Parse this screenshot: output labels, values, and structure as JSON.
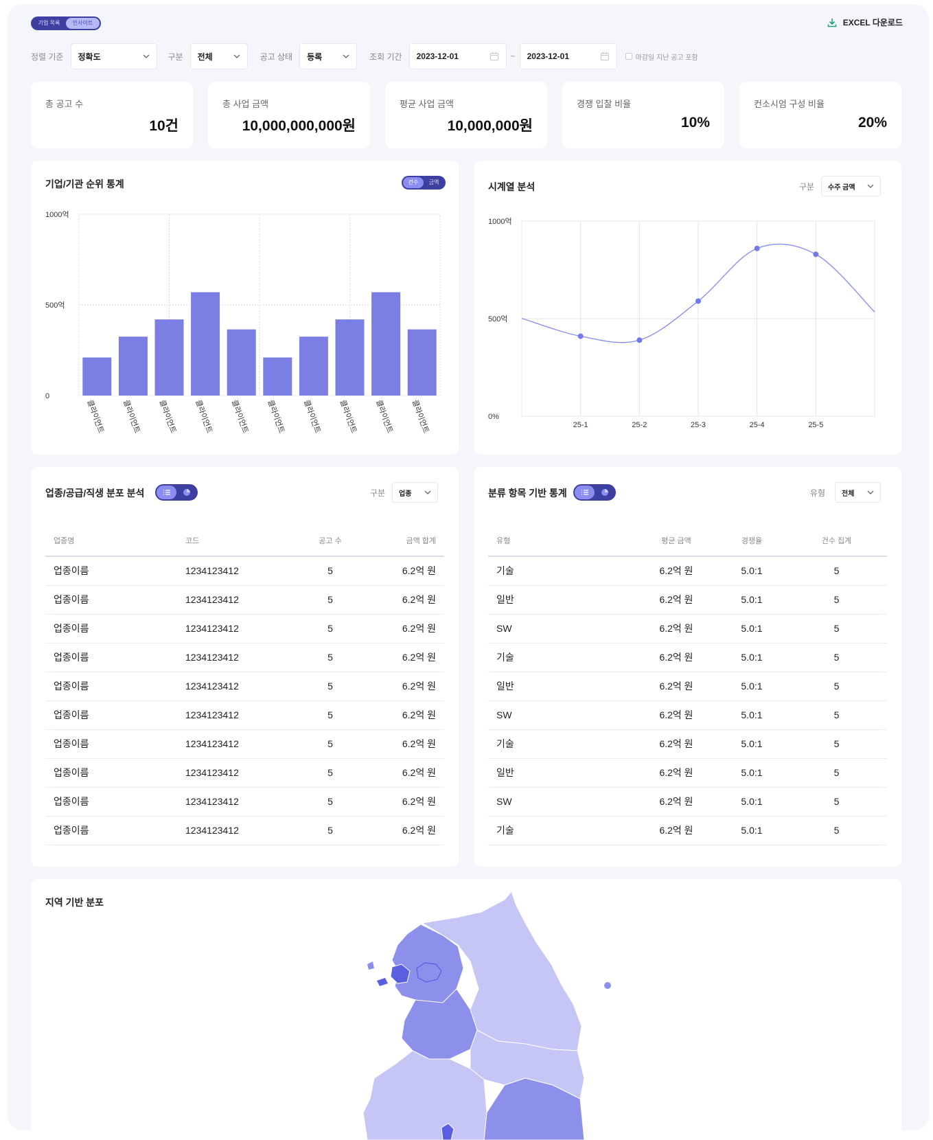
{
  "header": {
    "view_tabs": [
      "기업 목록",
      "인사이트"
    ],
    "active_view_tab": 1,
    "excel_button": "EXCEL 다운로드"
  },
  "filters": {
    "sort_label": "정렬 기준",
    "sort_value": "정확도",
    "category_label": "구분",
    "category_value": "전체",
    "status_label": "공고 상태",
    "status_value": "등록",
    "period_label": "조회 기간",
    "date_from": "2023-12-01",
    "date_to": "2023-12-01",
    "date_separator": "~",
    "include_expired_label": "마감일 지난 공고 포함",
    "include_expired_checked": false
  },
  "stats": [
    {
      "label": "총 공고 수",
      "value": "10건"
    },
    {
      "label": "총 사업 금액",
      "value": "10,000,000,000원"
    },
    {
      "label": "평균 사업 금액",
      "value": "10,000,000원"
    },
    {
      "label": "경쟁 입찰 비율",
      "value": "10%"
    },
    {
      "label": "컨소시엄 구성 비율",
      "value": "20%"
    }
  ],
  "ranking_panel": {
    "title": "기업/기관 순위 통계",
    "toggle": [
      "건수",
      "금액"
    ],
    "active_toggle": 0
  },
  "timeseries_panel": {
    "title": "시계열 분석",
    "select_label": "구분",
    "select_value": "수주 금액"
  },
  "industry_panel": {
    "title": "업종/공급/직생 분포 분석",
    "select_label": "구분",
    "select_value": "업종",
    "columns": [
      "업종명",
      "코드",
      "공고 수",
      "금액 합계"
    ],
    "rows": [
      [
        "업종이름",
        "1234123412",
        "5",
        "6.2억 원"
      ],
      [
        "업종이름",
        "1234123412",
        "5",
        "6.2억 원"
      ],
      [
        "업종이름",
        "1234123412",
        "5",
        "6.2억 원"
      ],
      [
        "업종이름",
        "1234123412",
        "5",
        "6.2억 원"
      ],
      [
        "업종이름",
        "1234123412",
        "5",
        "6.2억 원"
      ],
      [
        "업종이름",
        "1234123412",
        "5",
        "6.2억 원"
      ],
      [
        "업종이름",
        "1234123412",
        "5",
        "6.2억 원"
      ],
      [
        "업종이름",
        "1234123412",
        "5",
        "6.2억 원"
      ],
      [
        "업종이름",
        "1234123412",
        "5",
        "6.2억 원"
      ],
      [
        "업종이름",
        "1234123412",
        "5",
        "6.2억 원"
      ]
    ]
  },
  "category_panel": {
    "title": "분류 항목 기반 통계",
    "select_label": "유형",
    "select_value": "전체",
    "columns": [
      "유형",
      "평균 금액",
      "경쟁율",
      "건수 집계"
    ],
    "rows": [
      [
        "기술",
        "6.2억 원",
        "5.0:1",
        "5"
      ],
      [
        "일반",
        "6.2억 원",
        "5.0:1",
        "5"
      ],
      [
        "SW",
        "6.2억 원",
        "5.0:1",
        "5"
      ],
      [
        "기술",
        "6.2억 원",
        "5.0:1",
        "5"
      ],
      [
        "일반",
        "6.2억 원",
        "5.0:1",
        "5"
      ],
      [
        "SW",
        "6.2억 원",
        "5.0:1",
        "5"
      ],
      [
        "기술",
        "6.2억 원",
        "5.0:1",
        "5"
      ],
      [
        "일반",
        "6.2억 원",
        "5.0:1",
        "5"
      ],
      [
        "SW",
        "6.2억 원",
        "5.0:1",
        "5"
      ],
      [
        "기술",
        "6.2억 원",
        "5.0:1",
        "5"
      ]
    ]
  },
  "region_panel": {
    "title": "지역 기반 분포"
  },
  "colors": {
    "accent": "#7b7fe3",
    "toggle_bg": "#3d40a0",
    "map_light": "#c5c6f5",
    "map_mid": "#8d90ea",
    "map_dark": "#5a5ee0"
  },
  "chart_data": [
    {
      "type": "bar",
      "categories": [
        "클라이언트",
        "클라이언트",
        "클라이언트",
        "클라이언트",
        "클라이언트",
        "클라이언트",
        "클라이언트",
        "클라이언트",
        "클라이언트",
        "클라이언트"
      ],
      "values": [
        210,
        325,
        420,
        570,
        365,
        210,
        325,
        420,
        570,
        365
      ],
      "ylim": [
        0,
        1000
      ],
      "yticks": [
        "0",
        "500억",
        "1000억"
      ],
      "grid": true
    },
    {
      "type": "line",
      "x": [
        "25-1",
        "25-2",
        "25-3",
        "25-4",
        "25-5"
      ],
      "series": [
        {
          "values": [
            410,
            390,
            590,
            860,
            830
          ]
        }
      ],
      "ylim": [
        0,
        1000
      ],
      "yticks": [
        "0%",
        "500억",
        "1000억"
      ],
      "grid": true,
      "smooth": true
    }
  ]
}
